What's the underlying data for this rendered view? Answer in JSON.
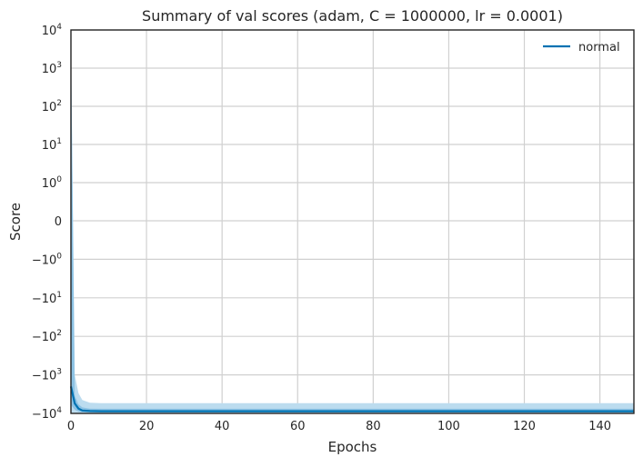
{
  "chart_data": {
    "type": "line",
    "title": "Summary of val scores (adam, C = 1000000, lr = 0.0001)",
    "xlabel": "Epochs",
    "ylabel": "Score",
    "xlim": [
      0,
      149
    ],
    "ylim": [
      -10000,
      10000
    ],
    "y_scale": "symlog",
    "grid": true,
    "legend_position": "top-right",
    "x_ticks": [
      0,
      20,
      40,
      60,
      80,
      100,
      120,
      140
    ],
    "y_ticks": [
      {
        "value": 10000,
        "base": "10",
        "exp": "4"
      },
      {
        "value": 1000,
        "base": "10",
        "exp": "3"
      },
      {
        "value": 100,
        "base": "10",
        "exp": "2"
      },
      {
        "value": 10,
        "base": "10",
        "exp": "1"
      },
      {
        "value": 1,
        "base": "10",
        "exp": "0"
      },
      {
        "value": 0,
        "base": "0",
        "exp": ""
      },
      {
        "value": -1,
        "base": "−10",
        "exp": "0"
      },
      {
        "value": -10,
        "base": "−10",
        "exp": "1"
      },
      {
        "value": -100,
        "base": "−10",
        "exp": "2"
      },
      {
        "value": -1000,
        "base": "−10",
        "exp": "3"
      },
      {
        "value": -10000,
        "base": "−10",
        "exp": "4"
      }
    ],
    "series": [
      {
        "name": "normal",
        "color": "#0072b2",
        "band_outer_color": "#bcdcef",
        "band_inner_color": "#8cc2e4",
        "x": [
          0,
          1,
          2,
          3,
          5,
          8,
          149
        ],
        "mean": [
          -2000,
          -5500,
          -7500,
          -8400,
          -8700,
          -8800,
          -8800
        ],
        "inner_upper": [
          5000,
          -3500,
          -5800,
          -7000,
          -7500,
          -7600,
          -7600
        ],
        "inner_lower": [
          -6000,
          -8000,
          -9000,
          -9300,
          -9400,
          -9400,
          -9400
        ],
        "outer_upper": [
          9000,
          -1000,
          -3000,
          -4500,
          -5300,
          -5400,
          -5400
        ],
        "outer_lower": [
          -9500,
          -9700,
          -9800,
          -9800,
          -9800,
          -9800,
          -9800
        ]
      }
    ]
  }
}
